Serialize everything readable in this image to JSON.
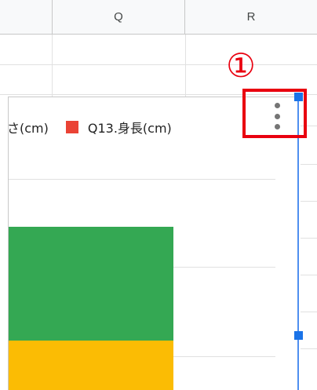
{
  "columns": [
    "Q",
    "R"
  ],
  "chart": {
    "legend": [
      {
        "label": "の高さ(cm)",
        "color": "#34a853"
      },
      {
        "label": "Q13.身長(cm)",
        "color": "#ea4335"
      }
    ],
    "bar_colors": [
      "#34a853",
      "#fbbc04"
    ],
    "menu_icon": "more-vert-icon"
  },
  "annotation": {
    "marker": "①",
    "color": "#e9000f"
  },
  "selection_color": "#1a73e8"
}
